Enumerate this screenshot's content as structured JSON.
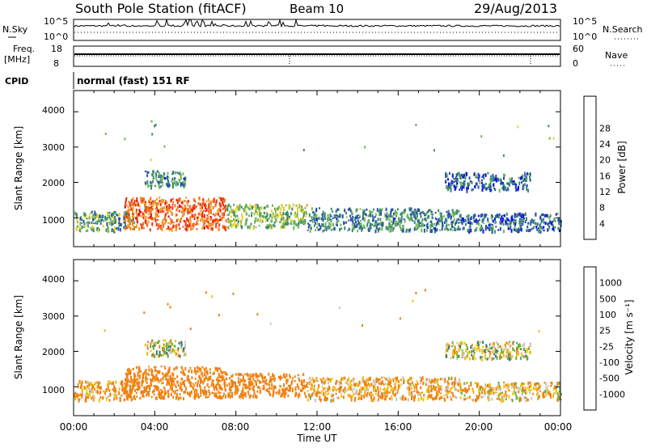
{
  "header": {
    "station": "South Pole Station (fitACF)",
    "beam": "Beam 10",
    "date": "29/Aug/2013"
  },
  "panels": {
    "nsky": {
      "label": "N.Sky",
      "axis_right_label": "N.Search",
      "ticks": [
        "10^5",
        "10^0"
      ]
    },
    "freq": {
      "label_line1": "Freq.",
      "label_line2": "[MHz]",
      "ticks_left": [
        "18",
        "8"
      ],
      "ticks_right": [
        "60",
        "0"
      ],
      "right_label": "Nave"
    },
    "cpid": {
      "label": "CPID",
      "text": "normal (fast) 151 RF"
    }
  },
  "axes": {
    "ylabel": "Slant Range [km]",
    "xlabel": "Time UT",
    "xticks": [
      "00:00",
      "04:00",
      "08:00",
      "12:00",
      "16:00",
      "20:00",
      "00:00"
    ],
    "yticks": [
      "1000",
      "2000",
      "3000",
      "4000"
    ]
  },
  "colors": {
    "power_scale": [
      "#1010e0",
      "#2a50a8",
      "#3a8a70",
      "#6fb65a",
      "#e8d020",
      "#f0a020",
      "#f07020",
      "#f03010",
      "#e00000"
    ],
    "velocity_scale": [
      "#2030c0",
      "#2e58a0",
      "#3a7a6a",
      "#60b040",
      "#c8c8c0",
      "#f0c010",
      "#f08010",
      "#f05010",
      "#e01010"
    ]
  },
  "chart_data": [
    {
      "type": "heatmap",
      "title": "Power",
      "colorbar_label": "Power [dB]",
      "colorbar_ticks": [
        "4",
        "8",
        "12",
        "16",
        "20",
        "24",
        "28"
      ],
      "xlabel": "Time UT",
      "ylabel": "Slant Range [km]",
      "xlim": [
        0,
        24
      ],
      "ylim": [
        180,
        4600
      ],
      "scatter_regions": [
        {
          "t_start": 0.0,
          "t_end": 3.0,
          "r_low": 650,
          "r_high": 1200,
          "value": 10
        },
        {
          "t_start": 2.5,
          "t_end": 7.5,
          "r_low": 700,
          "r_high": 1600,
          "value": 22
        },
        {
          "t_start": 3.5,
          "t_end": 5.5,
          "r_low": 1900,
          "r_high": 2350,
          "value": 8
        },
        {
          "t_start": 7.5,
          "t_end": 11.5,
          "r_low": 750,
          "r_high": 1400,
          "value": 12
        },
        {
          "t_start": 11.5,
          "t_end": 19.0,
          "r_low": 650,
          "r_high": 1300,
          "value": 8
        },
        {
          "t_start": 19.0,
          "t_end": 24.0,
          "r_low": 650,
          "r_high": 1150,
          "value": 6
        },
        {
          "t_start": 18.3,
          "t_end": 22.5,
          "r_low": 1800,
          "r_high": 2300,
          "value": 6
        }
      ]
    },
    {
      "type": "heatmap",
      "title": "Velocity",
      "colorbar_label": "Velocity [m s⁻¹]",
      "colorbar_ticks": [
        "1000",
        "500",
        "100",
        "25",
        "-25",
        "-100",
        "-500",
        "-1000"
      ],
      "xlabel": "Time UT",
      "ylabel": "Slant Range [km]",
      "xlim": [
        0,
        24
      ],
      "ylim": [
        180,
        4600
      ],
      "scatter_regions": [
        {
          "t_start": 0.0,
          "t_end": 3.0,
          "r_low": 650,
          "r_high": 1200,
          "value": -150
        },
        {
          "t_start": 2.5,
          "t_end": 7.5,
          "r_low": 700,
          "r_high": 1600,
          "value": -300
        },
        {
          "t_start": 3.5,
          "t_end": 5.5,
          "r_low": 1900,
          "r_high": 2350,
          "value": 10
        },
        {
          "t_start": 7.5,
          "t_end": 11.5,
          "r_low": 750,
          "r_high": 1400,
          "value": -250
        },
        {
          "t_start": 11.5,
          "t_end": 19.0,
          "r_low": 650,
          "r_high": 1300,
          "value": -120
        },
        {
          "t_start": 19.0,
          "t_end": 24.0,
          "r_low": 650,
          "r_high": 1150,
          "value": -80
        },
        {
          "t_start": 18.3,
          "t_end": 22.5,
          "r_low": 1800,
          "r_high": 2300,
          "value": 5
        }
      ]
    }
  ]
}
